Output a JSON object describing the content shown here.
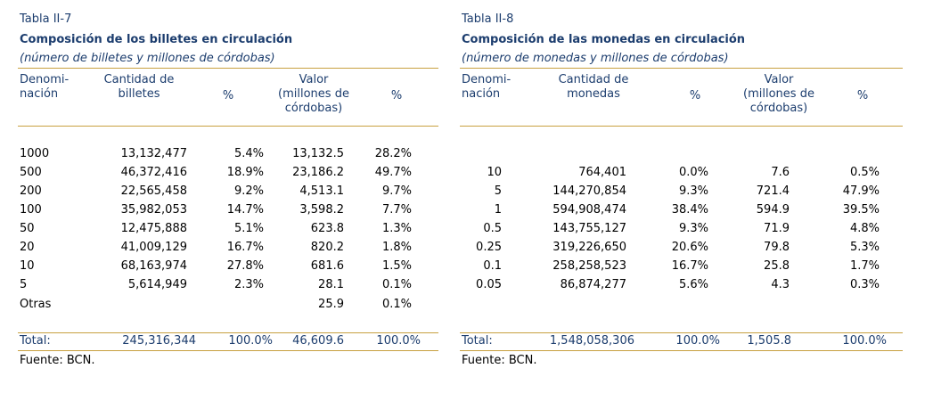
{
  "left_table": {
    "label": "Tabla II-7",
    "title": "Composición de los billetes en circulación",
    "subtitle": "(número de billetes y millones de córdobas)",
    "headers": {
      "denom": [
        "Denomi-",
        "nación"
      ],
      "qty": [
        "Cantidad de",
        "billetes"
      ],
      "pct1": [
        "%"
      ],
      "value": [
        "Valor",
        "(millones de",
        "córdobas)"
      ],
      "pct2": [
        "%"
      ]
    },
    "rows": [
      {
        "denom": "1000",
        "qty": "13,132,477",
        "pct1": "5.4%",
        "value": "13,132.5",
        "pct2": "28.2%"
      },
      {
        "denom": "500",
        "qty": "46,372,416",
        "pct1": "18.9%",
        "value": "23,186.2",
        "pct2": "49.7%"
      },
      {
        "denom": "200",
        "qty": "22,565,458",
        "pct1": "9.2%",
        "value": "4,513.1",
        "pct2": "9.7%"
      },
      {
        "denom": "100",
        "qty": "35,982,053",
        "pct1": "14.7%",
        "value": "3,598.2",
        "pct2": "7.7%"
      },
      {
        "denom": "50",
        "qty": "12,475,888",
        "pct1": "5.1%",
        "value": "623.8",
        "pct2": "1.3%"
      },
      {
        "denom": "20",
        "qty": "41,009,129",
        "pct1": "16.7%",
        "value": "820.2",
        "pct2": "1.8%"
      },
      {
        "denom": "10",
        "qty": "68,163,974",
        "pct1": "27.8%",
        "value": "681.6",
        "pct2": "1.5%"
      },
      {
        "denom": "5",
        "qty": "5,614,949",
        "pct1": "2.3%",
        "value": "28.1",
        "pct2": "0.1%"
      },
      {
        "denom": "Otras",
        "qty": "",
        "pct1": "",
        "value": "25.9",
        "pct2": "0.1%"
      }
    ],
    "total": {
      "label": "Total:",
      "qty": "245,316,344",
      "pct1": "100.0%",
      "value": "46,609.6",
      "pct2": "100.0%"
    },
    "source": "Fuente: BCN."
  },
  "right_table": {
    "label": "Tabla II-8",
    "title": "Composición de las monedas en circulación",
    "subtitle": "(número de monedas y millones de córdobas)",
    "headers": {
      "denom": [
        "Denomi-",
        "nación"
      ],
      "qty": [
        "Cantidad de",
        "monedas"
      ],
      "pct1": [
        "%"
      ],
      "value": [
        "Valor",
        "(millones de",
        "córdobas)"
      ],
      "pct2": [
        "%"
      ]
    },
    "rows": [
      {
        "denom": "10",
        "qty": "764,401",
        "pct1": "0.0%",
        "value": "7.6",
        "pct2": "0.5%"
      },
      {
        "denom": "5",
        "qty": "144,270,854",
        "pct1": "9.3%",
        "value": "721.4",
        "pct2": "47.9%"
      },
      {
        "denom": "1",
        "qty": "594,908,474",
        "pct1": "38.4%",
        "value": "594.9",
        "pct2": "39.5%"
      },
      {
        "denom": "0.5",
        "qty": "143,755,127",
        "pct1": "9.3%",
        "value": "71.9",
        "pct2": "4.8%"
      },
      {
        "denom": "0.25",
        "qty": "319,226,650",
        "pct1": "20.6%",
        "value": "79.8",
        "pct2": "5.3%"
      },
      {
        "denom": "0.1",
        "qty": "258,258,523",
        "pct1": "16.7%",
        "value": "25.8",
        "pct2": "1.7%"
      },
      {
        "denom": "0.05",
        "qty": "86,874,277",
        "pct1": "5.6%",
        "value": "4.3",
        "pct2": "0.3%"
      }
    ],
    "total": {
      "label": "Total:",
      "qty": "1,548,058,306",
      "pct1": "100.0%",
      "value": "1,505.8",
      "pct2": "100.0%"
    },
    "source": "Fuente: BCN."
  },
  "colors": {
    "title_blue": "#1c3d6e",
    "rule_gold": "#c8a040"
  }
}
